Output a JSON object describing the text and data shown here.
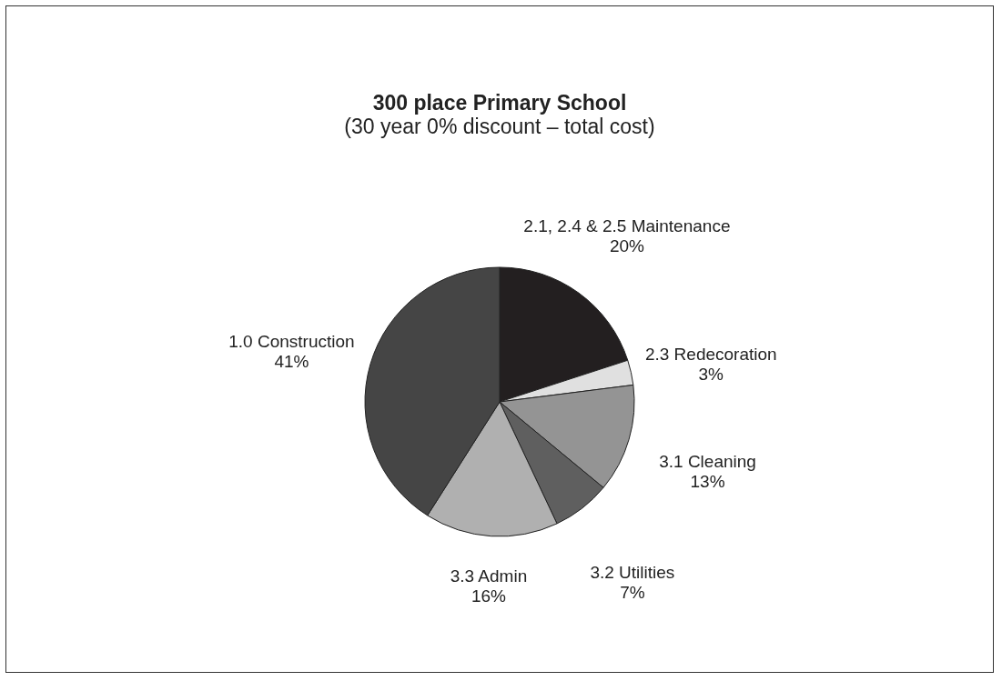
{
  "chart_data": {
    "type": "pie",
    "title": "300 place Primary School",
    "subtitle": "(30 year 0% discount – total cost)",
    "categories": [
      "2.1, 2.4 & 2.5 Maintenance",
      "2.3 Redecoration",
      "3.1 Cleaning",
      "3.2 Utilities",
      "3.3 Admin",
      "1.0 Construction"
    ],
    "values": [
      20,
      3,
      13,
      7,
      16,
      41
    ],
    "colors": [
      "#231f20",
      "#e0e0e0",
      "#949494",
      "#5f5f5f",
      "#b0b0b0",
      "#454545"
    ],
    "value_labels": [
      "20%",
      "3%",
      "13%",
      "7%",
      "16%",
      "41%"
    ],
    "legend": false
  }
}
